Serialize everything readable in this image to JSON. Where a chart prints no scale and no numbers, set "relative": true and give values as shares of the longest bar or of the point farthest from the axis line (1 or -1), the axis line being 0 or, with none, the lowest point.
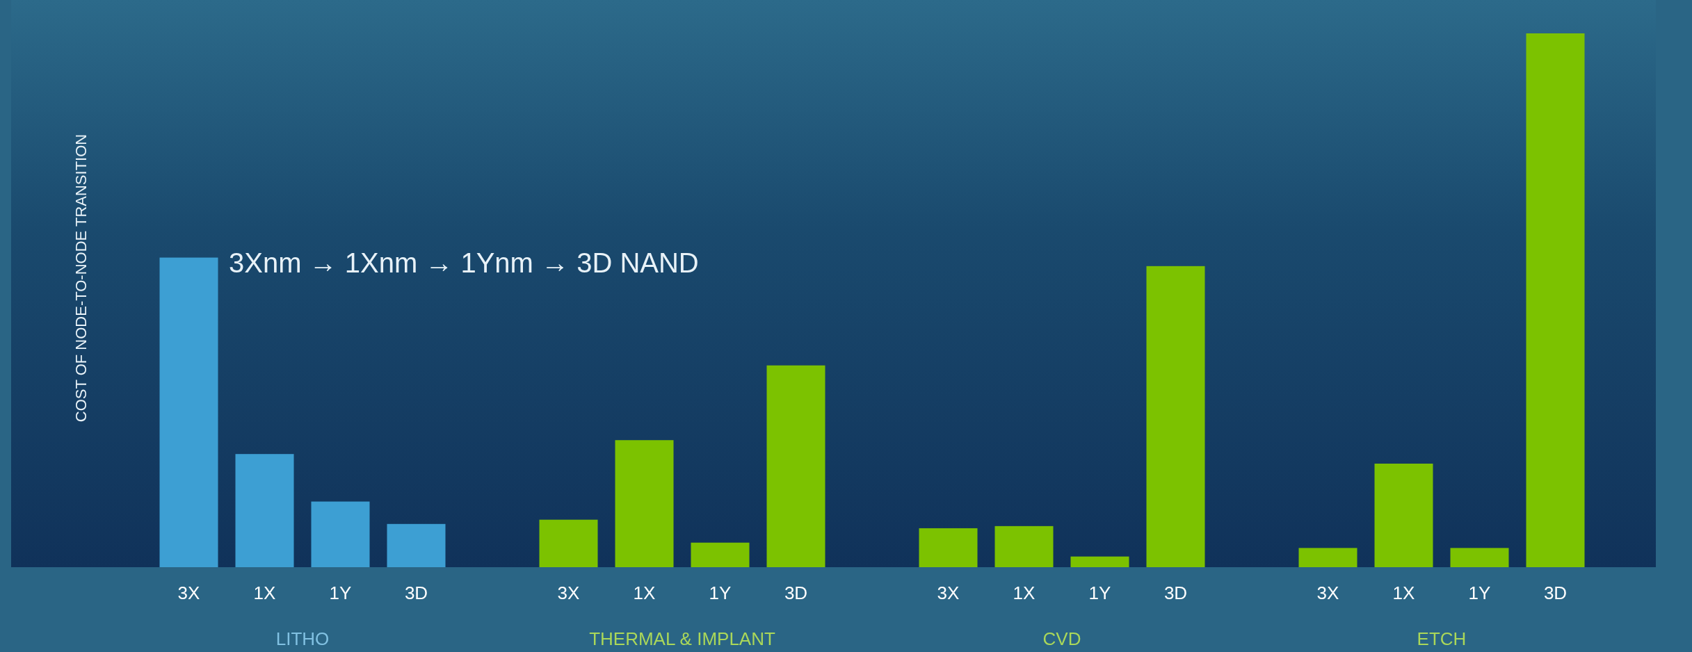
{
  "chart_data": {
    "type": "bar",
    "relative": true,
    "ylabel": "COST OF NODE-TO-NODE TRANSITION",
    "annotations": [
      "3Xnm → 1Xnm → 1Ynm → 3D NAND"
    ],
    "categories": [
      "LITHO",
      "THERMAL & IMPLANT",
      "CVD",
      "ETCH"
    ],
    "series": [
      {
        "name": "3X",
        "colors": [
          "#3d9fd3",
          "#7cc200",
          "#7cc200",
          "#7cc200"
        ],
        "values": [
          0.58,
          0.089,
          0.073,
          0.036
        ]
      },
      {
        "name": "1X",
        "colors": [
          "#3d9fd3",
          "#7cc200",
          "#7cc200",
          "#7cc200"
        ],
        "values": [
          0.212,
          0.238,
          0.077,
          0.194
        ]
      },
      {
        "name": "1Y",
        "colors": [
          "#3d9fd3",
          "#7cc200",
          "#7cc200",
          "#7cc200"
        ],
        "values": [
          0.123,
          0.046,
          0.02,
          0.036
        ]
      },
      {
        "name": "3D",
        "colors": [
          "#3d9fd3",
          "#7cc200",
          "#7cc200",
          "#7cc200"
        ],
        "values": [
          0.081,
          0.378,
          0.564,
          1
        ]
      }
    ]
  }
}
